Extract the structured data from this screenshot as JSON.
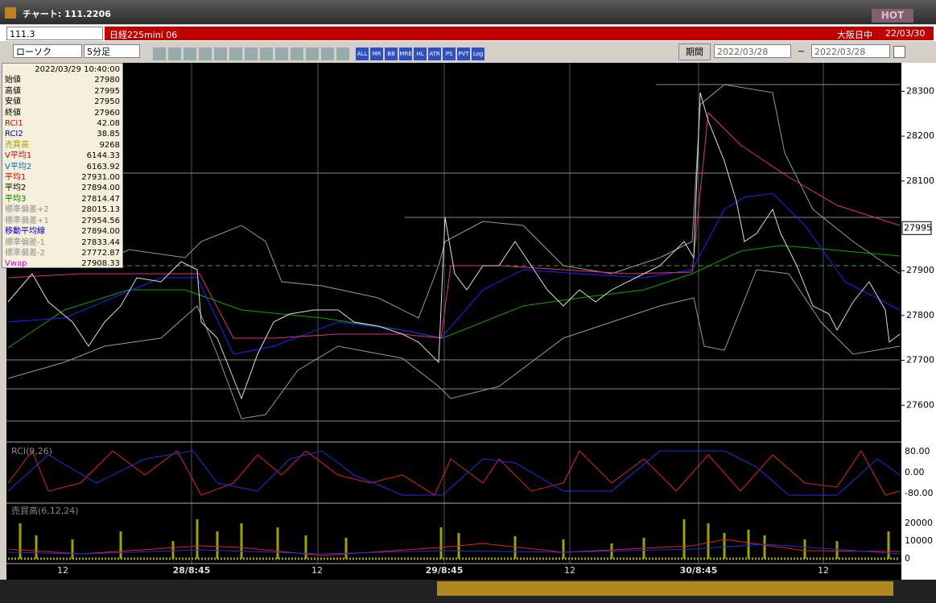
{
  "window": {
    "title": "チャート: 111.2206",
    "hot": "HOT"
  },
  "symbol_bar": {
    "code": "111.3",
    "name": "日経225mini 06",
    "session": "大阪日中",
    "date": "22/03/30"
  },
  "toolbar": {
    "chart_type": "ローソク",
    "interval": "5分足",
    "icons": [
      "ALL",
      "MR",
      "BB",
      "MRE",
      "HL",
      "ATR",
      "PS",
      "PVT",
      "Log"
    ],
    "period": "期間",
    "from": "2022/03/28",
    "tilde": "~",
    "to": "2022/03/28"
  },
  "info_panel": {
    "datetime": "2022/03/29 10:40:00",
    "rows": [
      [
        "始値",
        "27980",
        "#000000"
      ],
      [
        "高値",
        "27995",
        "#000000"
      ],
      [
        "安値",
        "27950",
        "#000000"
      ],
      [
        "終値",
        "27960",
        "#000000"
      ],
      [
        "RCI1",
        "42.08",
        "#d00000"
      ],
      [
        "RCI2",
        "38.85",
        "#0000c0"
      ],
      [
        "売買高",
        "9268",
        "#a0a000"
      ],
      [
        "V平均1",
        "6144.33",
        "#d00000"
      ],
      [
        "V平均2",
        "6163.92",
        "#0060d0"
      ],
      [
        "平均1",
        "27931.00",
        "#d00000"
      ],
      [
        "平均2",
        "27894.00",
        "#000000"
      ],
      [
        "平均3",
        "27814.47",
        "#008000"
      ],
      [
        "標準偏差+2",
        "28015.13",
        "#909090"
      ],
      [
        "標準偏差+1",
        "27954.56",
        "#909090"
      ],
      [
        "移動平均線",
        "27894.00",
        "#0000c0"
      ],
      [
        "標準偏差-1",
        "27833.44",
        "#909090"
      ],
      [
        "標準偏差-2",
        "27772.87",
        "#909090"
      ],
      [
        "Vwap",
        "27908.33",
        "#d000d0"
      ]
    ]
  },
  "price_axis": {
    "ticks": [
      28300,
      28200,
      28100,
      27900,
      27800,
      27700,
      27600
    ],
    "current": 27995
  },
  "rci_panel": {
    "label": "RCI(9,26)",
    "ticks": [
      "80.00",
      "0.00",
      "-80.00"
    ]
  },
  "volume_panel": {
    "label": "売買高(6,12,24)",
    "ticks": [
      "20000",
      "10000",
      "0"
    ]
  },
  "x_axis": [
    "12",
    "28/8:45",
    "12",
    "29/8:45",
    "12",
    "30/8:45",
    "12"
  ]
}
